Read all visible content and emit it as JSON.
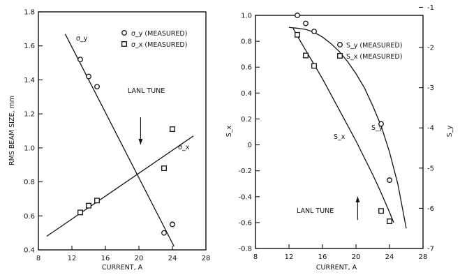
{
  "chart_data": [
    {
      "type": "scatter",
      "xlabel": "CURRENT, A",
      "ylabel": "RMS BEAM SIZE, mm",
      "xlim": [
        8,
        28
      ],
      "ylim": [
        0.4,
        1.8
      ],
      "xticks": [
        8,
        12,
        16,
        20,
        24,
        28
      ],
      "yticks": [
        0.4,
        0.6,
        0.8,
        1.0,
        1.2,
        1.4,
        1.6,
        1.8
      ],
      "xtick_labels": [
        "8",
        "12",
        "16",
        "20",
        "24",
        "28"
      ],
      "ytick_labels": [
        "0.4",
        "0.6",
        "0.8",
        "1.0",
        "1.2",
        "1.4",
        "1.6",
        "1.8"
      ],
      "legend": [
        "σ_y (MEASURED)",
        "σ_x (MEASURED)"
      ],
      "legend_position": "top-right",
      "series": [
        {
          "name": "σ_y (MEASURED)",
          "marker": "circle",
          "x": [
            13,
            14,
            15,
            23,
            24
          ],
          "y": [
            1.52,
            1.42,
            1.36,
            0.5,
            0.55
          ]
        },
        {
          "name": "σ_x (MEASURED)",
          "marker": "square",
          "x": [
            13,
            14,
            15,
            23,
            24
          ],
          "y": [
            0.62,
            0.66,
            0.69,
            0.88,
            1.11
          ]
        }
      ],
      "fit_lines": [
        {
          "label": "σ_y",
          "x": [
            11.2,
            24.2
          ],
          "y": [
            1.67,
            0.42
          ]
        },
        {
          "label": "σ_x",
          "x": [
            9,
            26.5
          ],
          "y": [
            0.48,
            1.07
          ]
        }
      ],
      "curve_labels": {
        "sy": "σ_y",
        "sx": "σ_x"
      },
      "annotation": {
        "text": "LANL TUNE",
        "x": 20.2,
        "arrow_y": [
          1.18,
          1.02
        ]
      }
    },
    {
      "type": "line",
      "xlabel": "CURRENT, A",
      "ylabel": "S_x",
      "ylabel_right": "S_y",
      "xlim": [
        8,
        28
      ],
      "ylim": [
        -0.8,
        1.0
      ],
      "ylim_right": [
        -7,
        -1.2
      ],
      "xticks": [
        8,
        12,
        16,
        20,
        24,
        28
      ],
      "yticks": [
        -0.8,
        -0.6,
        -0.4,
        -0.2,
        0,
        0.2,
        0.4,
        0.6,
        0.8,
        1.0
      ],
      "yticks_right": [
        -1,
        -2,
        -3,
        -4,
        -5,
        -6,
        -7
      ],
      "xtick_labels": [
        "8",
        "12",
        "16",
        "20",
        "24",
        "28"
      ],
      "ytick_labels": [
        "-0.8",
        "-0.6",
        "-0.4",
        "-0.2",
        "0",
        "0.2",
        "0.4",
        "0.6",
        "0.8",
        "1.0"
      ],
      "ytick_labels_right": [
        "-1",
        "-2",
        "-3",
        "-4",
        "-5",
        "-6",
        "-7"
      ],
      "legend": [
        "S_y (MEASURED)",
        "S_x (MEASURED)"
      ],
      "legend_position": "top-right",
      "series": [
        {
          "name": "S_y (MEASURED)",
          "marker": "circle",
          "axis": "right",
          "x": [
            13,
            14,
            15,
            23,
            24
          ],
          "y": [
            -1.2,
            -1.4,
            -1.6,
            -3.9,
            -5.3
          ]
        },
        {
          "name": "S_x (MEASURED)",
          "marker": "square",
          "axis": "left",
          "x": [
            13,
            14,
            15,
            23,
            24
          ],
          "y": [
            0.85,
            0.69,
            0.61,
            -0.51,
            -0.59
          ]
        }
      ],
      "curves": [
        {
          "label": "S_y",
          "axis": "right",
          "x": [
            12,
            13,
            14,
            15,
            16,
            17,
            18,
            19,
            20,
            21,
            22,
            23,
            24,
            25,
            26
          ],
          "y": [
            -1.5,
            -1.52,
            -1.55,
            -1.62,
            -1.74,
            -1.9,
            -2.1,
            -2.35,
            -2.65,
            -3.0,
            -3.45,
            -3.95,
            -4.6,
            -5.4,
            -6.5
          ]
        },
        {
          "label": "S_x",
          "axis": "left",
          "x": [
            12.5,
            13,
            14,
            15,
            16,
            17,
            18,
            19,
            20,
            21,
            22,
            23,
            24,
            24.5
          ],
          "y": [
            0.9,
            0.84,
            0.73,
            0.62,
            0.51,
            0.39,
            0.27,
            0.15,
            0.03,
            -0.1,
            -0.23,
            -0.37,
            -0.52,
            -0.6
          ]
        }
      ],
      "curve_labels": {
        "sy": "S_y",
        "sx": "S_x"
      },
      "annotation": {
        "text": "LANL TUNE",
        "x": 20.2,
        "arrow_y": [
          -0.58,
          -0.4
        ]
      }
    }
  ]
}
